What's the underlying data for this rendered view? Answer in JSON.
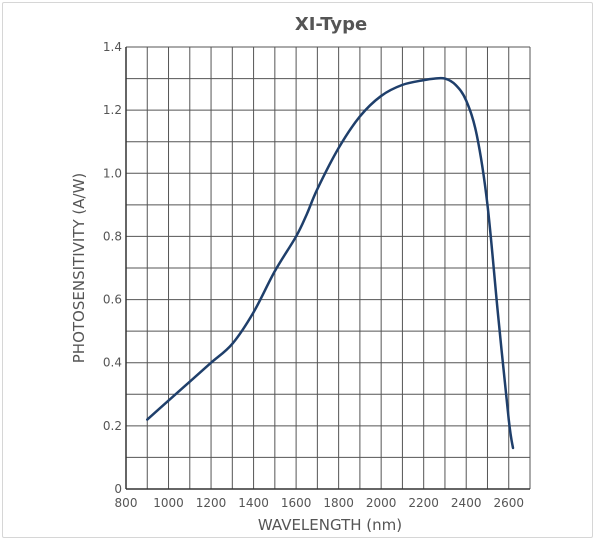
{
  "chart_data": {
    "type": "line",
    "title": "XI-Type",
    "xlabel": "WAVELENGTH (nm)",
    "ylabel": "PHOTOSENSITIVITY (A/W)",
    "xlim": [
      800,
      2700
    ],
    "ylim": [
      0,
      1.4
    ],
    "xticks": [
      800,
      1000,
      1200,
      1400,
      1600,
      1800,
      2000,
      2200,
      2400,
      2600
    ],
    "yticks": [
      0,
      0.2,
      0.4,
      0.6,
      0.8,
      1.0,
      1.2,
      1.4
    ],
    "ytick_labels": [
      "0",
      "0.2",
      "0.4",
      "0.6",
      "0.8",
      "1.0",
      "1.2",
      "1.4"
    ],
    "grid": true,
    "line_color": "#1f3f6b",
    "grid_color": "#555555",
    "series": [
      {
        "x": [
          900,
          1000,
          1100,
          1200,
          1300,
          1400,
          1500,
          1600,
          1650,
          1700,
          1800,
          1900,
          2000,
          2100,
          2200,
          2250,
          2300,
          2350,
          2400,
          2450,
          2500,
          2550,
          2600,
          2620
        ],
        "y": [
          0.22,
          0.28,
          0.34,
          0.4,
          0.46,
          0.56,
          0.69,
          0.8,
          0.87,
          0.95,
          1.08,
          1.18,
          1.245,
          1.28,
          1.295,
          1.3,
          1.3,
          1.28,
          1.23,
          1.12,
          0.9,
          0.55,
          0.22,
          0.13
        ]
      }
    ]
  }
}
